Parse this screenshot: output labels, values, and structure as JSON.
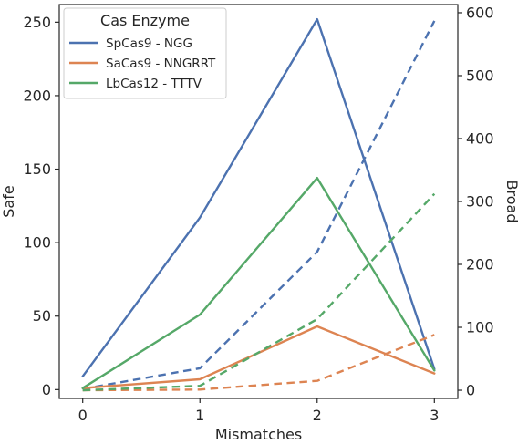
{
  "chart_data": {
    "type": "line",
    "x": [
      0,
      1,
      2,
      3
    ],
    "xlabel": "Mismatches",
    "ylabel_left": "Safe",
    "ylabel_right": "Broad",
    "xlim": [
      -0.2,
      3.2
    ],
    "ylim_left": [
      -6,
      262
    ],
    "ylim_right": [
      -13,
      613
    ],
    "xticks": [
      0,
      1,
      2,
      3
    ],
    "yticks_left": [
      0,
      50,
      100,
      150,
      200,
      250
    ],
    "yticks_right": [
      0,
      100,
      200,
      300,
      400,
      500,
      600
    ],
    "grid": false,
    "legend": {
      "title": "Cas Enzyme",
      "placement": "top-left"
    },
    "line_styles": {
      "solid": "Safe (left axis)",
      "dashed": "Broad (right axis)"
    },
    "series": [
      {
        "name": "SpCas9 - NGG",
        "color": "#4c72b0",
        "safe": [
          9,
          117,
          252,
          14
        ],
        "broad": [
          2,
          35,
          220,
          587
        ]
      },
      {
        "name": "SaCas9 - NNGRRT",
        "color": "#dd8452",
        "safe": [
          1,
          7,
          43,
          11
        ],
        "broad": [
          0,
          1,
          15,
          88
        ]
      },
      {
        "name": "LbCas12 - TTTV",
        "color": "#55a868",
        "safe": [
          1,
          51,
          144,
          13
        ],
        "broad": [
          0,
          7,
          113,
          312
        ]
      }
    ]
  }
}
